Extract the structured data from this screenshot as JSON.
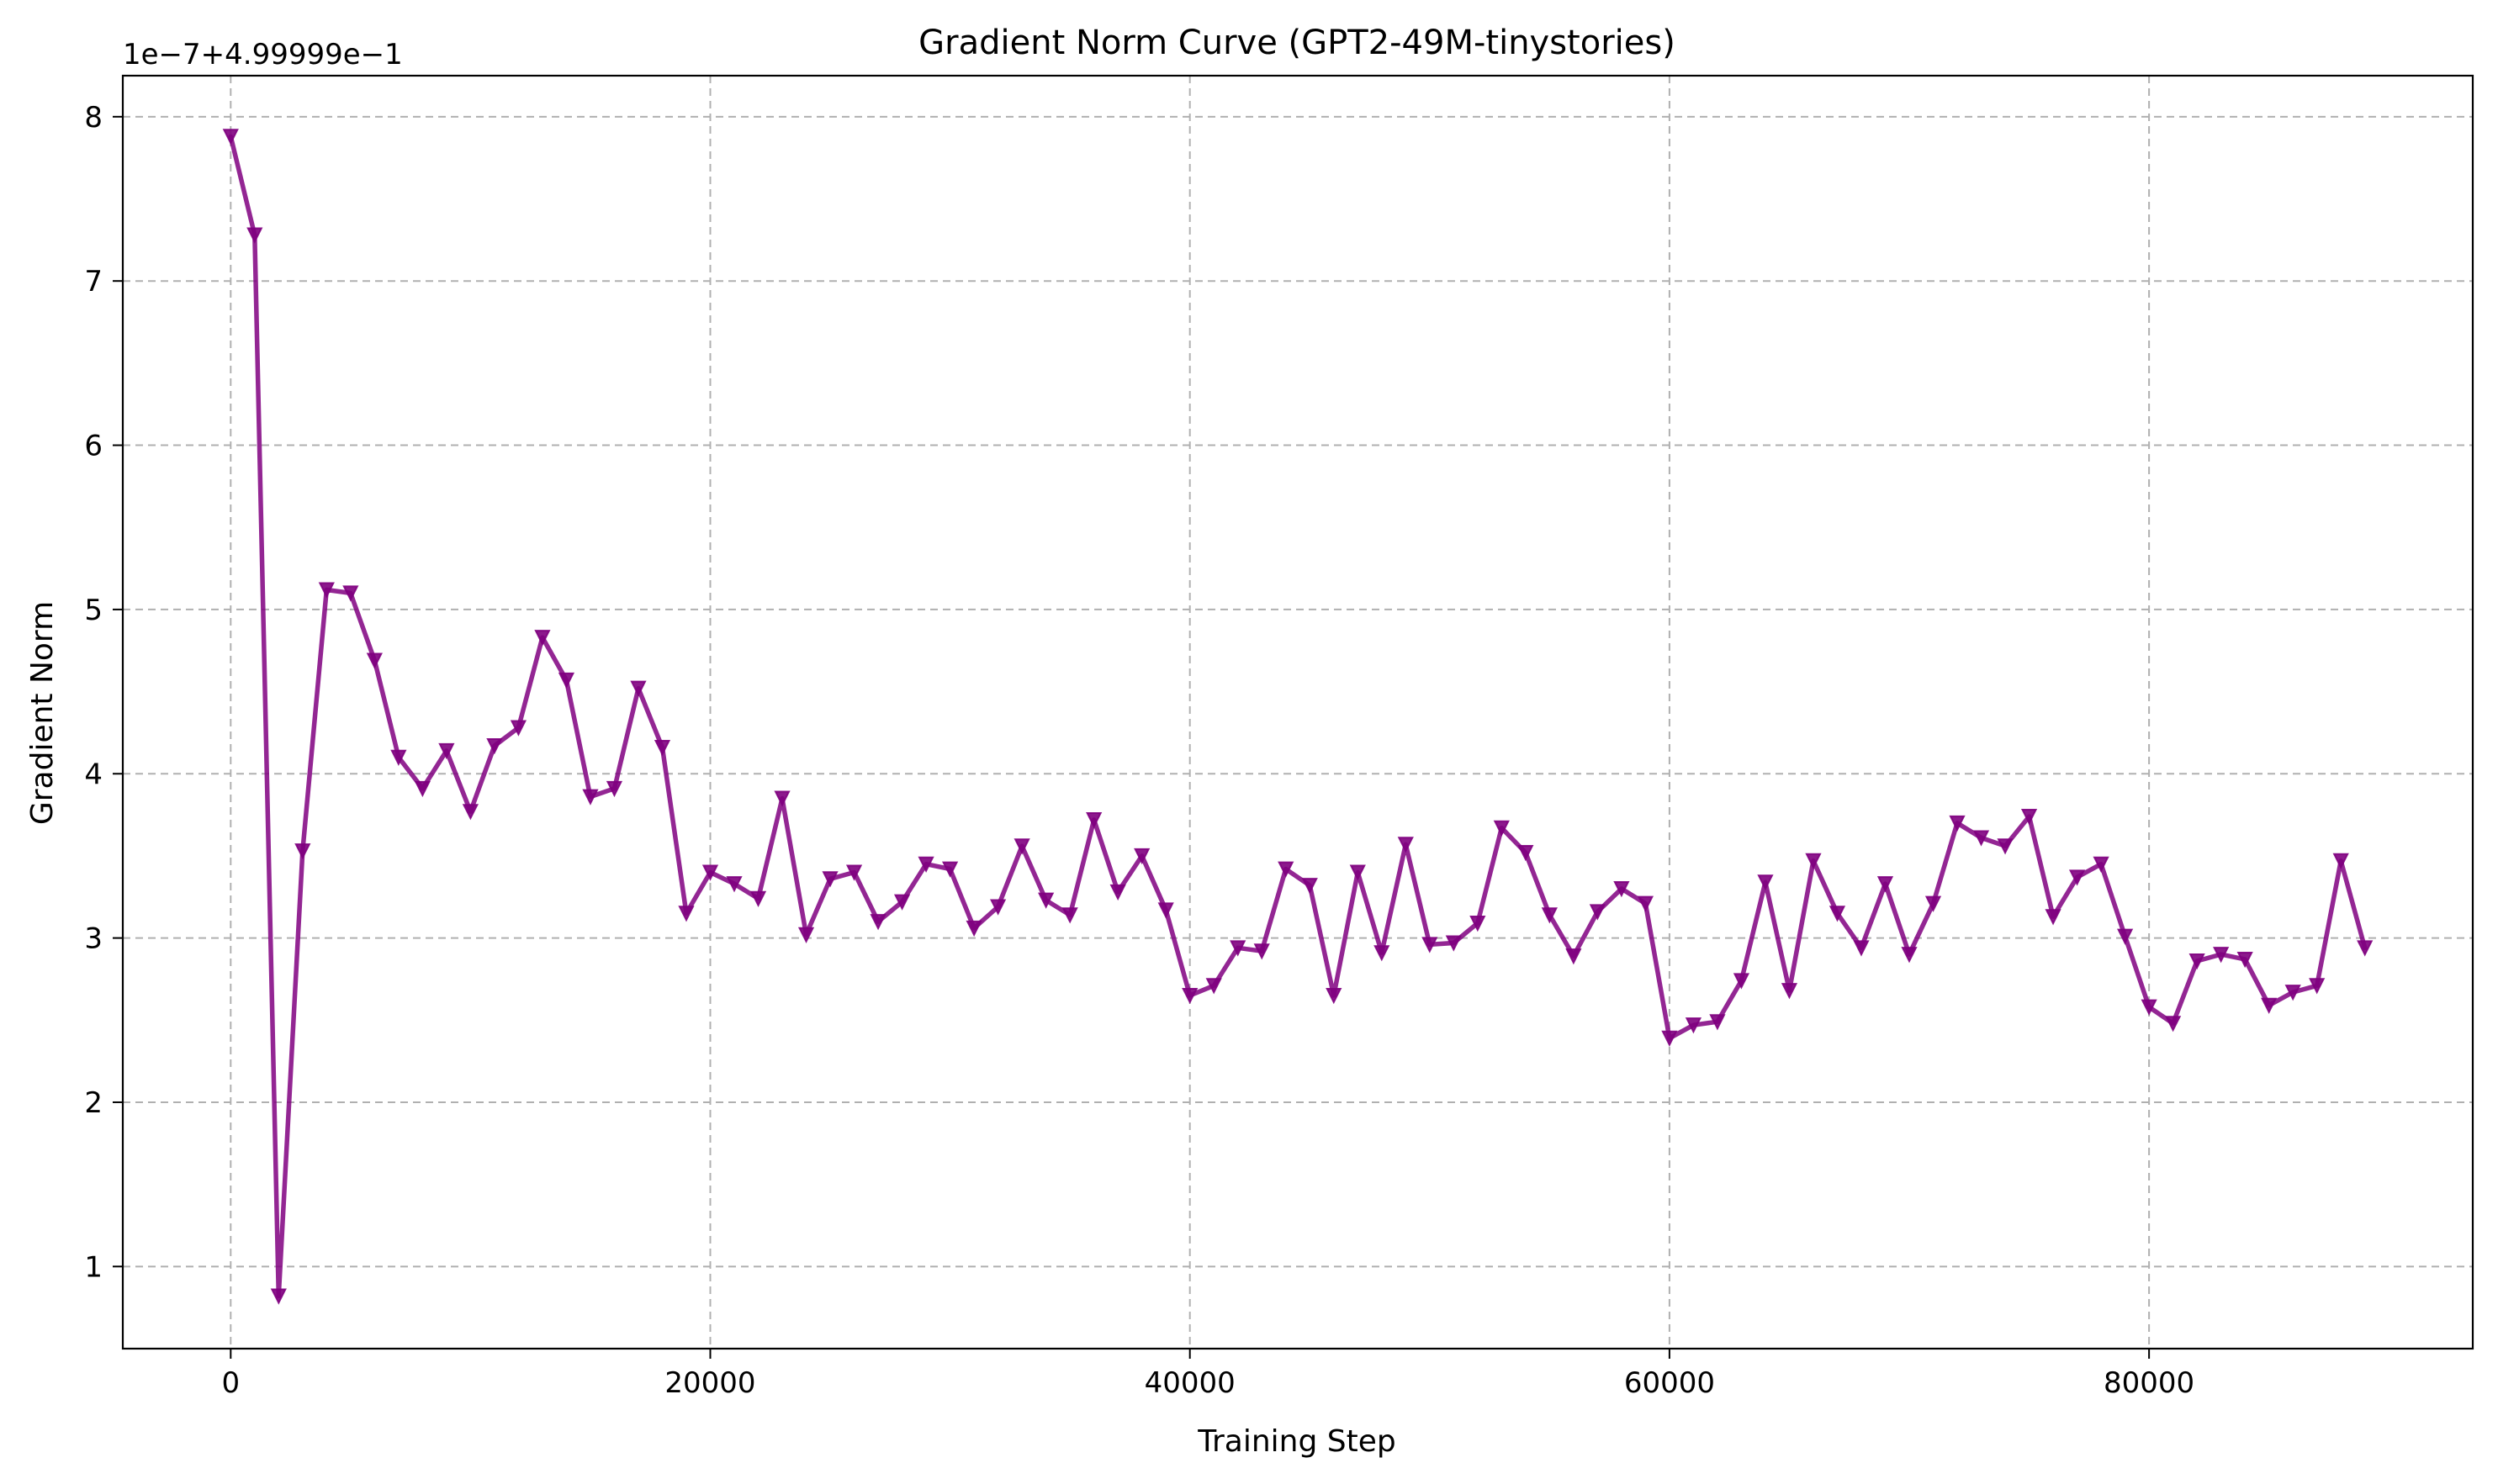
{
  "chart_data": {
    "type": "line",
    "title": "Gradient Norm Curve (GPT2-49M-tinystories)",
    "xlabel": "Training Step",
    "ylabel": "Gradient Norm",
    "y_offset_label": "1e−7+4.99999e−1",
    "xlim": [
      -4500,
      93500
    ],
    "ylim": [
      0.5,
      8.25
    ],
    "xticks": [
      0,
      20000,
      40000,
      60000,
      80000
    ],
    "xtick_labels": [
      "0",
      "20000",
      "40000",
      "60000",
      "80000"
    ],
    "yticks": [
      1,
      2,
      3,
      4,
      5,
      6,
      7,
      8
    ],
    "ytick_labels": [
      "1",
      "2",
      "3",
      "4",
      "5",
      "6",
      "7",
      "8"
    ],
    "grid": true,
    "legend": "none",
    "color": "#800080",
    "marker": "triangle-down",
    "series": [
      {
        "x": [
          0,
          1000,
          2000,
          3000,
          4000,
          5000,
          6000,
          7000,
          8000,
          9000,
          10000,
          11000,
          12000,
          13000,
          14000,
          15000,
          16000,
          17000,
          18000,
          19000,
          20000,
          21000,
          22000,
          23000,
          24000,
          25000,
          26000,
          27000,
          28000,
          29000,
          30000,
          31000,
          32000,
          33000,
          34000,
          35000,
          36000,
          37000,
          38000,
          39000,
          40000,
          41000,
          42000,
          43000,
          44000,
          45000,
          46000,
          47000,
          48000,
          49000,
          50000,
          51000,
          52000,
          53000,
          54000,
          55000,
          56000,
          57000,
          58000,
          59000,
          60000,
          61000,
          62000,
          63000,
          64000,
          65000,
          66000,
          67000,
          68000,
          69000,
          70000,
          71000,
          72000,
          73000,
          74000,
          75000,
          76000,
          77000,
          78000,
          79000,
          80000,
          81000,
          82000,
          83000,
          84000,
          85000,
          86000,
          87000,
          88000,
          89000
        ],
        "values": [
          7.88,
          7.28,
          0.82,
          3.53,
          5.12,
          5.1,
          4.69,
          4.1,
          3.91,
          4.14,
          3.77,
          4.17,
          4.28,
          4.83,
          4.57,
          3.86,
          3.91,
          4.52,
          4.16,
          3.15,
          3.4,
          3.33,
          3.24,
          3.85,
          3.02,
          3.36,
          3.4,
          3.1,
          3.22,
          3.45,
          3.42,
          3.06,
          3.19,
          3.56,
          3.23,
          3.14,
          3.72,
          3.28,
          3.5,
          3.17,
          2.65,
          2.71,
          2.94,
          2.92,
          3.42,
          3.32,
          2.65,
          3.4,
          2.91,
          3.57,
          2.96,
          2.97,
          3.09,
          3.67,
          3.52,
          3.14,
          2.89,
          3.16,
          3.3,
          3.21,
          2.39,
          2.47,
          2.49,
          2.74,
          3.34,
          2.68,
          3.47,
          3.15,
          2.94,
          3.33,
          2.9,
          3.21,
          3.7,
          3.61,
          3.56,
          3.74,
          3.13,
          3.37,
          3.45,
          3.01,
          2.58,
          2.48,
          2.86,
          2.9,
          2.87,
          2.59,
          2.67,
          2.71,
          3.47,
          2.94
        ]
      }
    ]
  }
}
